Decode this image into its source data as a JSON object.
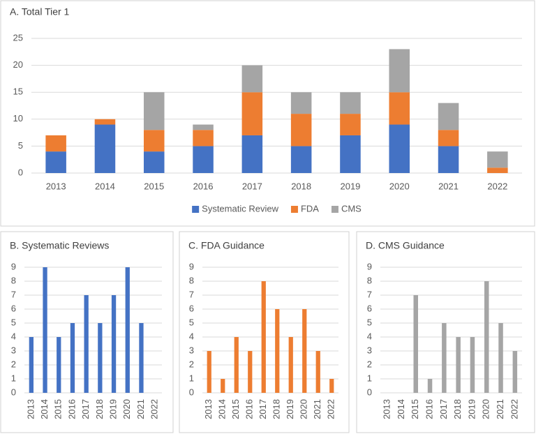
{
  "chart_data": [
    {
      "type": "stacked_bar",
      "title": "A. Total Tier 1",
      "categories": [
        "2013",
        "2014",
        "2015",
        "2016",
        "2017",
        "2018",
        "2019",
        "2020",
        "2021",
        "2022"
      ],
      "series": [
        {
          "name": "Systematic Review",
          "color": "#4472c4",
          "values": [
            4,
            9,
            4,
            5,
            7,
            5,
            7,
            9,
            5,
            0
          ]
        },
        {
          "name": "FDA",
          "color": "#ed7d31",
          "values": [
            3,
            1,
            4,
            3,
            8,
            6,
            4,
            6,
            3,
            1
          ]
        },
        {
          "name": "CMS",
          "color": "#a5a5a5",
          "values": [
            0,
            0,
            7,
            1,
            5,
            4,
            4,
            8,
            5,
            3
          ]
        }
      ],
      "ylim": [
        0,
        25
      ],
      "yticks": [
        0,
        5,
        10,
        15,
        20,
        25
      ],
      "grid": true,
      "legend": "bottom"
    },
    {
      "type": "bar",
      "title": "B. Systematic Reviews",
      "categories": [
        "2013",
        "2014",
        "2015",
        "2016",
        "2017",
        "2018",
        "2019",
        "2020",
        "2021",
        "2022"
      ],
      "values": [
        4,
        9,
        4,
        5,
        7,
        5,
        7,
        9,
        5,
        0
      ],
      "color": "#4472c4",
      "ylim": [
        0,
        9
      ],
      "yticks": [
        0,
        1,
        2,
        3,
        4,
        5,
        6,
        7,
        8,
        9
      ],
      "grid": true
    },
    {
      "type": "bar",
      "title": "C. FDA Guidance",
      "categories": [
        "2013",
        "2014",
        "2015",
        "2016",
        "2017",
        "2018",
        "2019",
        "2020",
        "2021",
        "2022"
      ],
      "values": [
        3,
        1,
        4,
        3,
        8,
        6,
        4,
        6,
        3,
        1
      ],
      "color": "#ed7d31",
      "ylim": [
        0,
        9
      ],
      "yticks": [
        0,
        1,
        2,
        3,
        4,
        5,
        6,
        7,
        8,
        9
      ],
      "grid": true
    },
    {
      "type": "bar",
      "title": "D. CMS Guidance",
      "categories": [
        "2013",
        "2014",
        "2015",
        "2016",
        "2017",
        "2018",
        "2019",
        "2020",
        "2021",
        "2022"
      ],
      "values": [
        0,
        0,
        7,
        1,
        5,
        4,
        4,
        8,
        5,
        3
      ],
      "color": "#a5a5a5",
      "ylim": [
        0,
        9
      ],
      "yticks": [
        0,
        1,
        2,
        3,
        4,
        5,
        6,
        7,
        8,
        9
      ],
      "grid": true
    }
  ]
}
